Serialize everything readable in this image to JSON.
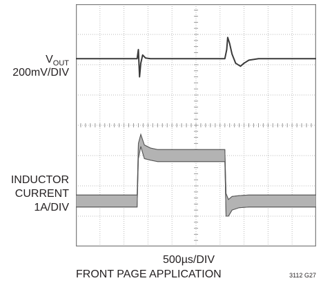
{
  "chart_data": {
    "type": "line",
    "title": "",
    "xlabel": "500µs/DIV",
    "caption": "FRONT PAGE APPLICATION",
    "figure_id": "3112 G27",
    "grid": {
      "x_divisions": 10,
      "y_divisions": 8,
      "on": true
    },
    "x_unit_per_div_us": 500,
    "series": [
      {
        "name_main": "V",
        "name_sub": "OUT",
        "scale": "200mV/DIV",
        "unit": "div",
        "x": [
          0,
          2.55,
          2.6,
          2.65,
          2.7,
          2.78,
          2.9,
          3.1,
          6.2,
          6.28,
          6.32,
          6.4,
          6.5,
          6.65,
          6.85,
          7.0,
          7.2,
          7.6,
          8.0,
          10.0
        ],
        "y": [
          6.2,
          6.2,
          6.5,
          5.6,
          6.05,
          6.32,
          6.22,
          6.2,
          6.2,
          6.5,
          6.9,
          6.7,
          6.35,
          6.05,
          5.95,
          6.05,
          6.15,
          6.2,
          6.2,
          6.2
        ]
      },
      {
        "name": "INDUCTOR CURRENT",
        "label_lines": [
          "INDUCTOR",
          "CURRENT",
          "1A/DIV"
        ],
        "scale": "1A/DIV",
        "unit": "div",
        "x": [
          0,
          2.55,
          2.6,
          2.7,
          2.85,
          3.1,
          3.4,
          6.2,
          6.25,
          6.35,
          6.5,
          6.8,
          7.2,
          10.0
        ],
        "y_top": [
          1.7,
          1.7,
          3.4,
          3.7,
          3.35,
          3.25,
          3.2,
          3.2,
          1.75,
          1.55,
          1.65,
          1.68,
          1.7,
          1.7
        ],
        "y_bottom": [
          1.3,
          1.3,
          2.9,
          3.3,
          2.9,
          2.85,
          2.8,
          2.8,
          1.0,
          1.0,
          1.2,
          1.28,
          1.3,
          1.3
        ]
      }
    ]
  }
}
